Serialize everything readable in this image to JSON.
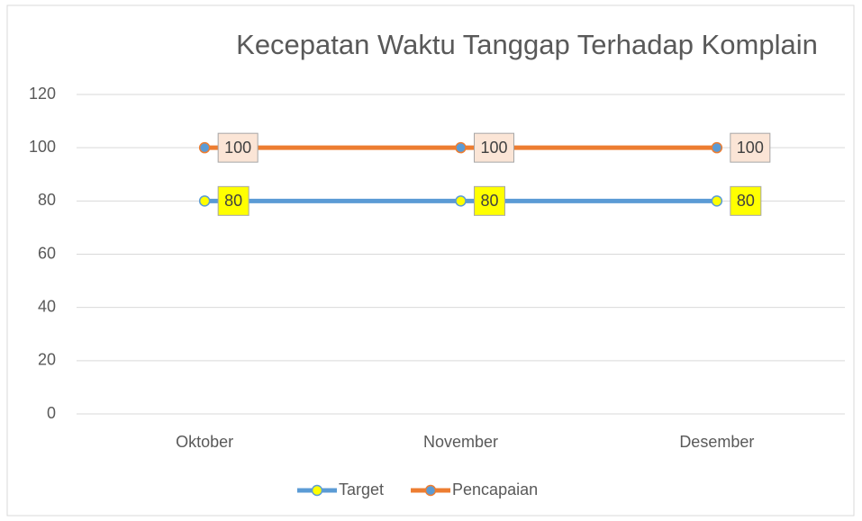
{
  "chart_data": {
    "type": "line",
    "title": "Kecepatan Waktu Tanggap Terhadap Komplain",
    "categories": [
      "Oktober",
      "November",
      "Desember"
    ],
    "series": [
      {
        "name": "Target",
        "color": "#5b9bd5",
        "marker_color": "#ffff00",
        "label_color": "#ffff00",
        "values": [
          80,
          80,
          80
        ]
      },
      {
        "name": "Pencapaian",
        "color": "#ed7d31",
        "marker_color": "#5b9bd5",
        "label_color": "#fbe5d6",
        "values": [
          100,
          100,
          100
        ]
      }
    ],
    "ylim": [
      0,
      120
    ],
    "yticks": [
      0,
      20,
      40,
      60,
      80,
      100,
      120
    ],
    "grid": true,
    "legend": "bottom"
  }
}
